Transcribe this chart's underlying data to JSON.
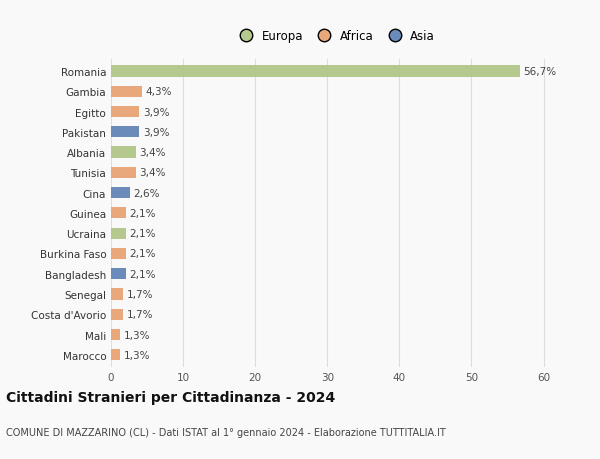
{
  "countries": [
    "Romania",
    "Gambia",
    "Egitto",
    "Pakistan",
    "Albania",
    "Tunisia",
    "Cina",
    "Guinea",
    "Ucraina",
    "Burkina Faso",
    "Bangladesh",
    "Senegal",
    "Costa d'Avorio",
    "Mali",
    "Marocco"
  ],
  "values": [
    56.7,
    4.3,
    3.9,
    3.9,
    3.4,
    3.4,
    2.6,
    2.1,
    2.1,
    2.1,
    2.1,
    1.7,
    1.7,
    1.3,
    1.3
  ],
  "labels": [
    "56,7%",
    "4,3%",
    "3,9%",
    "3,9%",
    "3,4%",
    "3,4%",
    "2,6%",
    "2,1%",
    "2,1%",
    "2,1%",
    "2,1%",
    "1,7%",
    "1,7%",
    "1,3%",
    "1,3%"
  ],
  "continents": [
    "Europa",
    "Africa",
    "Africa",
    "Asia",
    "Europa",
    "Africa",
    "Asia",
    "Africa",
    "Europa",
    "Africa",
    "Asia",
    "Africa",
    "Africa",
    "Africa",
    "Africa"
  ],
  "continent_colors": {
    "Europa": "#b5c98e",
    "Africa": "#e8a87c",
    "Asia": "#6b8cba"
  },
  "legend_labels": [
    "Europa",
    "Africa",
    "Asia"
  ],
  "legend_colors": [
    "#b5c98e",
    "#e8a87c",
    "#6b8cba"
  ],
  "title": "Cittadini Stranieri per Cittadinanza - 2024",
  "subtitle": "COMUNE DI MAZZARINO (CL) - Dati ISTAT al 1° gennaio 2024 - Elaborazione TUTTITALIA.IT",
  "xlim": [
    0,
    62
  ],
  "xticks": [
    0,
    10,
    20,
    30,
    40,
    50,
    60
  ],
  "bg_color": "#f9f9f9",
  "grid_color": "#dddddd",
  "bar_height": 0.55,
  "label_fontsize": 7.5,
  "tick_fontsize": 7.5,
  "title_fontsize": 10,
  "subtitle_fontsize": 7
}
